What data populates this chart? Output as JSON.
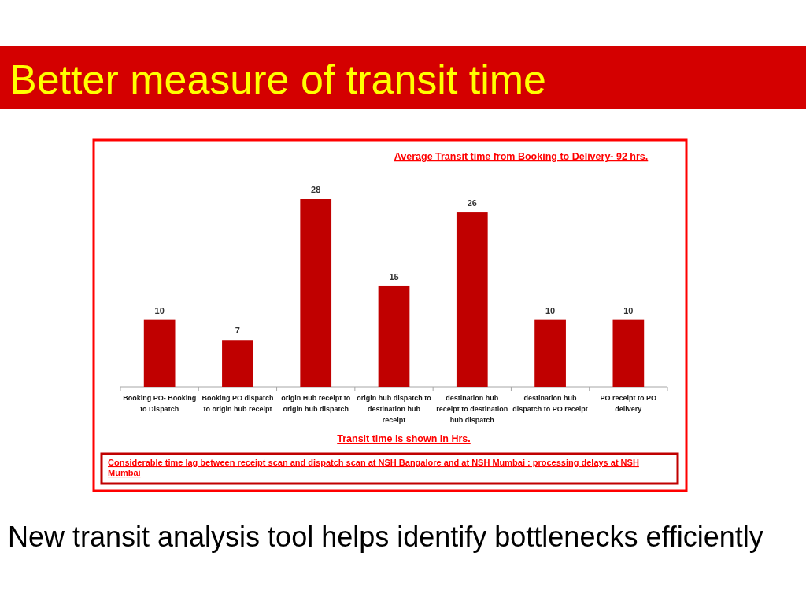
{
  "chart_data": {
    "type": "bar",
    "title": "Better measure of transit time",
    "subtitle": "Average Transit time from Booking to Delivery- 92 hrs.",
    "xlabel": "Transit time is shown in Hrs.",
    "categories": [
      "Booking PO- Booking to Dispatch",
      "Booking PO dispatch to origin hub receipt",
      "origin Hub receipt to origin hub dispatch",
      "origin hub dispatch to destination hub receipt",
      "destination hub receipt to destination hub dispatch",
      "destination hub dispatch to PO receipt",
      "PO receipt to PO delivery"
    ],
    "values": [
      10,
      7,
      28,
      15,
      26,
      10,
      10
    ],
    "color": "#c00000",
    "data_labels": true,
    "annotations": [
      "Considerable time lag between receipt scan and dispatch scan at NSH Bangalore and at NSH Mumbai : processing delays at NSH Mumbai",
      "New transit analysis tool helps identify bottlenecks efficiently"
    ]
  }
}
